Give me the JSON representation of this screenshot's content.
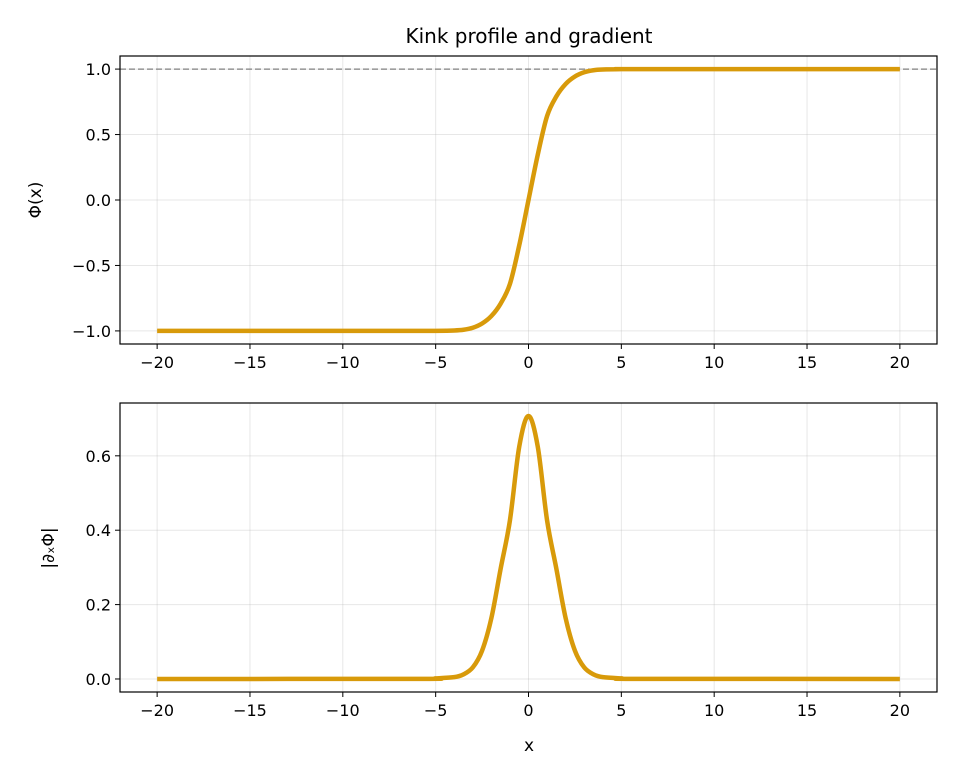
{
  "chart_data": [
    {
      "type": "line",
      "title": "Kink profile and gradient",
      "xlabel": "",
      "ylabel": "Φ(x)",
      "xlim": [
        -22,
        22
      ],
      "ylim": [
        -1.1,
        1.1
      ],
      "xticks": [
        -20,
        -15,
        -10,
        -5,
        0,
        5,
        10,
        15,
        20
      ],
      "xtick_labels": [
        "−20",
        "−15",
        "−10",
        "−5",
        "0",
        "5",
        "10",
        "15",
        "20"
      ],
      "yticks": [
        -1.0,
        -0.5,
        0.0,
        0.5,
        1.0
      ],
      "ytick_labels": [
        "−1.0",
        "−0.5",
        "0.0",
        "0.5",
        "1.0"
      ],
      "grid": true,
      "reference_line": {
        "orientation": "horizontal",
        "y": 1.0,
        "style": "dashed",
        "color": "#808080"
      },
      "series": [
        {
          "color": "#d89a0a",
          "x": [
            -20,
            -6,
            -5,
            -4,
            -3.5,
            -3,
            -2.5,
            -2,
            -1.5,
            -1,
            -0.5,
            0,
            0.5,
            1,
            1.5,
            2,
            2.5,
            3,
            3.5,
            4,
            5,
            6,
            20
          ],
          "y": [
            -1.0,
            -1.0,
            -0.9995,
            -0.9966,
            -0.9912,
            -0.9757,
            -0.9434,
            -0.8862,
            -0.7913,
            -0.6411,
            -0.3467,
            0.0,
            0.3467,
            0.6411,
            0.7913,
            0.8862,
            0.9434,
            0.9757,
            0.9912,
            0.9966,
            0.9995,
            1.0,
            1.0
          ]
        }
      ]
    },
    {
      "type": "line",
      "title": "",
      "xlabel": "x",
      "ylabel": "|∂ₓΦ|",
      "xlim": [
        -22,
        22
      ],
      "ylim": [
        -0.035,
        0.742
      ],
      "xticks": [
        -20,
        -15,
        -10,
        -5,
        0,
        5,
        10,
        15,
        20
      ],
      "xtick_labels": [
        "−20",
        "−15",
        "−10",
        "−5",
        "0",
        "5",
        "10",
        "15",
        "20"
      ],
      "yticks": [
        0.0,
        0.2,
        0.4,
        0.6
      ],
      "ytick_labels": [
        "0.0",
        "0.2",
        "0.4",
        "0.6"
      ],
      "grid": true,
      "series": [
        {
          "color": "#d89a0a",
          "x": [
            -20,
            -6,
            -5,
            -4,
            -3.5,
            -3,
            -2.5,
            -2,
            -1.5,
            -1,
            -0.5,
            0,
            0.5,
            1,
            1.5,
            2,
            2.5,
            3,
            3.5,
            4,
            5,
            6,
            20
          ],
          "y": [
            0.0,
            0.0003,
            0.0017,
            0.0049,
            0.0124,
            0.0311,
            0.0761,
            0.1636,
            0.2965,
            0.4265,
            0.6244,
            0.7071,
            0.6244,
            0.4265,
            0.2965,
            0.1636,
            0.0761,
            0.0311,
            0.0124,
            0.0049,
            0.0017,
            0.0003,
            0.0
          ]
        }
      ]
    }
  ]
}
